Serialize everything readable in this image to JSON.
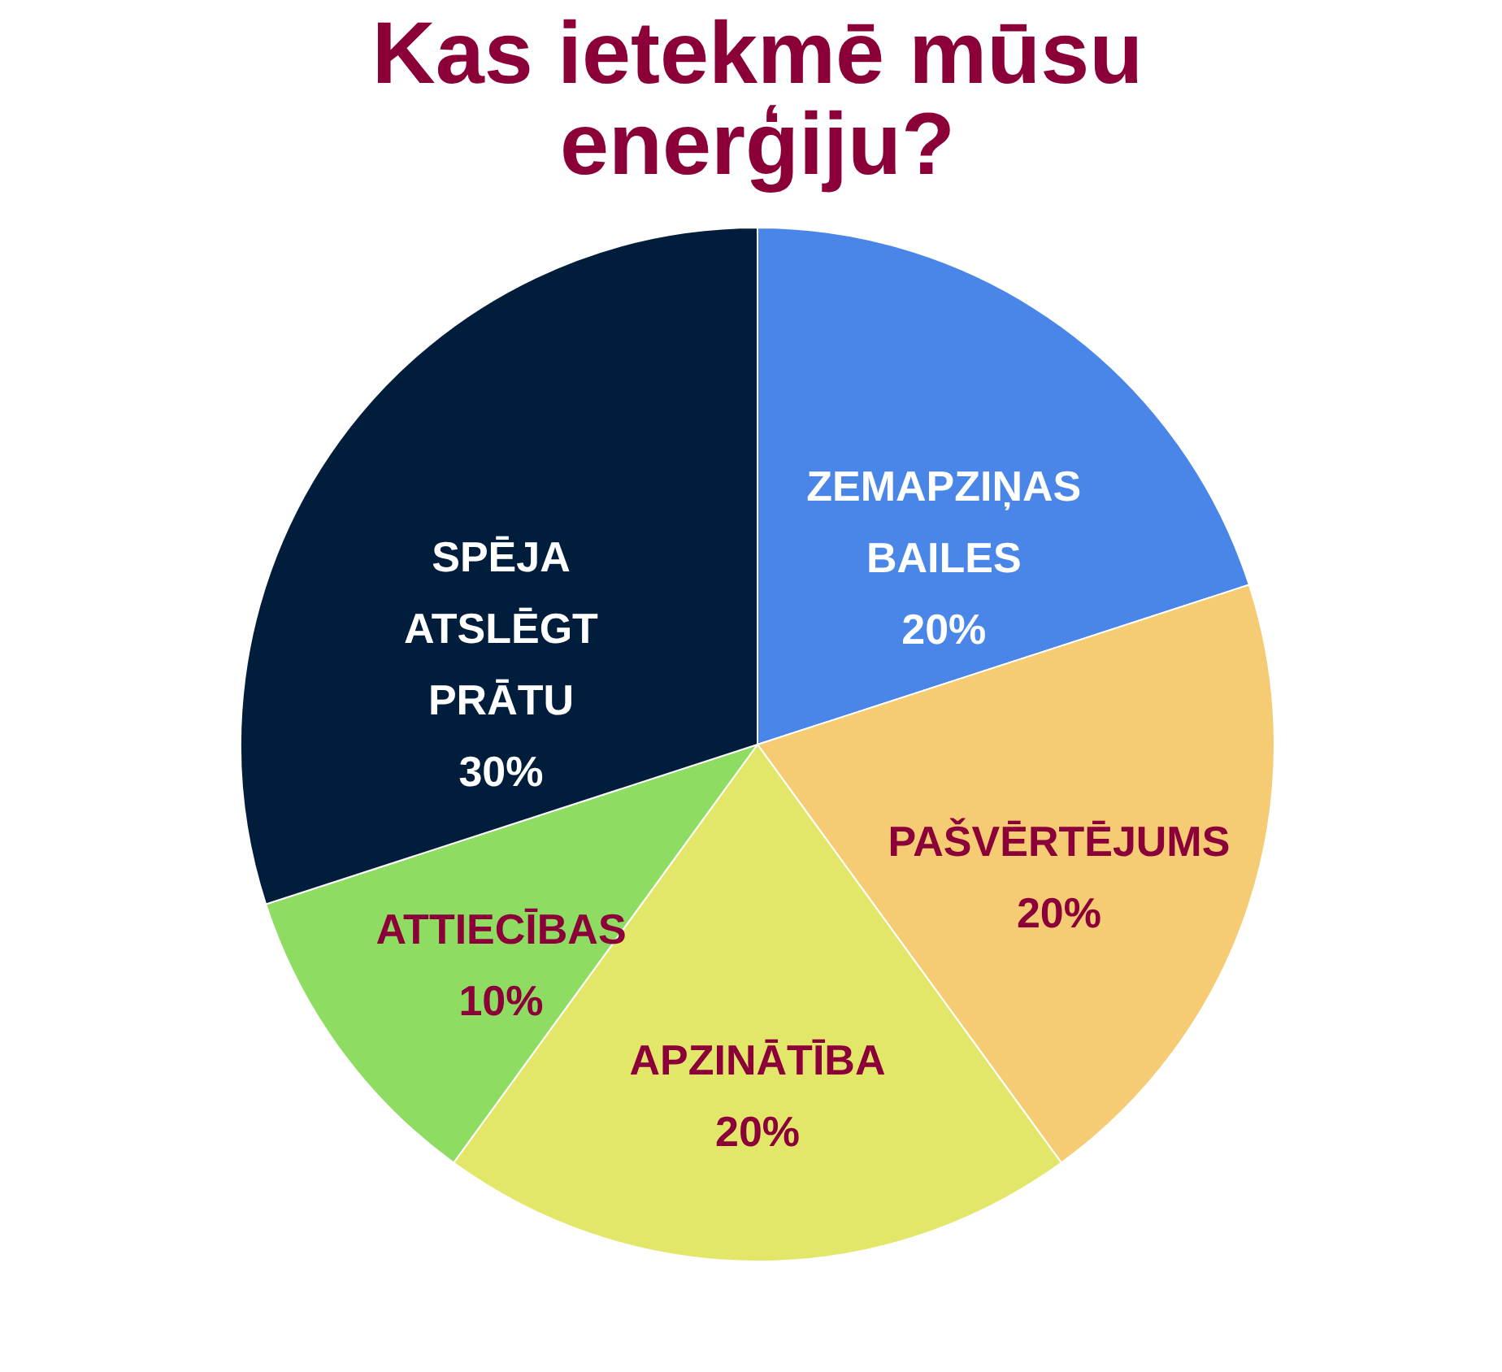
{
  "chart_data": {
    "type": "pie",
    "title": "Kas ietekmē mūsu enerģiju?",
    "categories": [
      "ZEMAPZIŅAS BAILES",
      "PAŠVĒRTĒJUMS",
      "APZINĀTĪBA",
      "ATTIECĪBAS",
      "SPĒJA ATSLĒGT PRĀTU"
    ],
    "values": [
      20,
      20,
      20,
      10,
      30
    ],
    "value_labels": [
      "20%",
      "20%",
      "20%",
      "10%",
      "30%"
    ],
    "colors": [
      "#4a86e8",
      "#f5cb74",
      "#e2e76a",
      "#8fdc62",
      "#001e3c"
    ]
  }
}
